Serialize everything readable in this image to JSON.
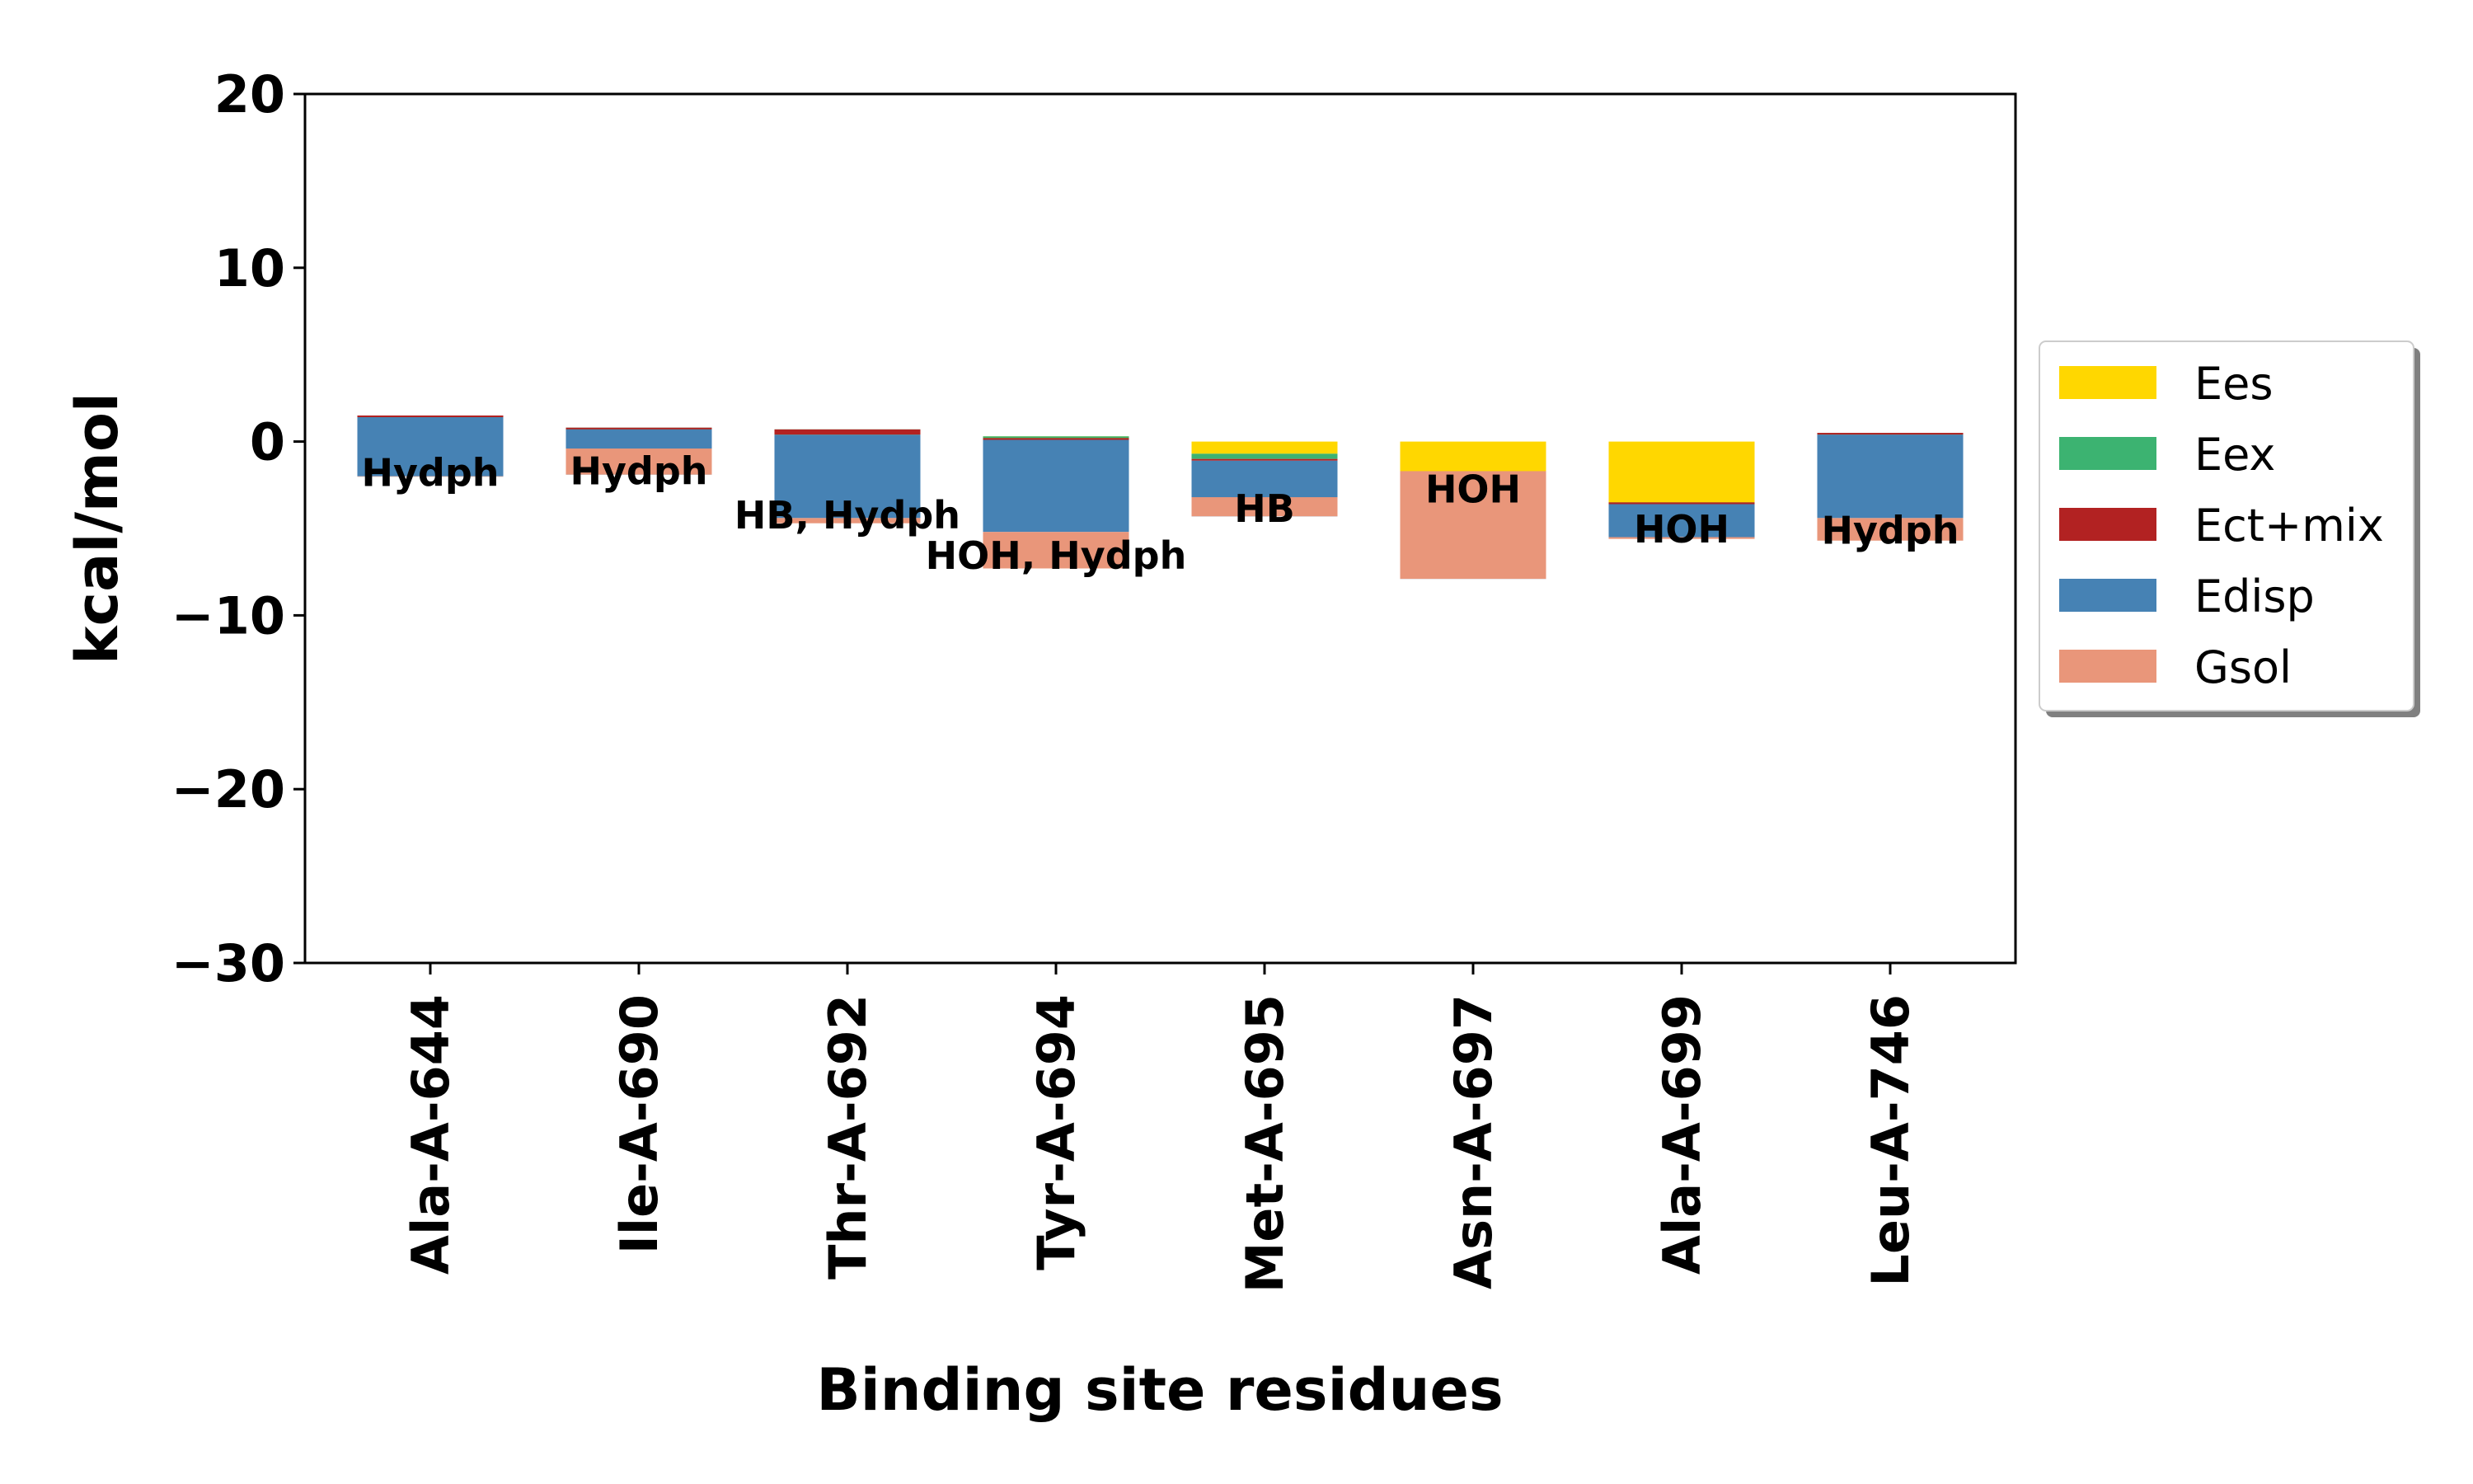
{
  "chart_data": {
    "type": "bar",
    "stacked": true,
    "xlabel": "Binding site residues",
    "ylabel": "kcal/mol",
    "ylim": [
      -30,
      20
    ],
    "yticks": [
      20,
      10,
      0,
      -10,
      -20,
      -30
    ],
    "ytick_labels": [
      "20",
      "10",
      "0",
      "−10",
      "−20",
      "−30"
    ],
    "grid": false,
    "legend_position": "right",
    "categories": [
      "Ala-A-644",
      "Ile-A-690",
      "Thr-A-692",
      "Tyr-A-694",
      "Met-A-695",
      "Asn-A-697",
      "Ala-A-699",
      "Leu-A-746"
    ],
    "annotations": [
      "Hydph",
      "Hydph",
      "HB, Hydph",
      "HOH, Hydph",
      "HB",
      "HOH",
      "HOH",
      "Hydph"
    ],
    "series": [
      {
        "name": "Ees",
        "color": "#FFD700",
        "values": [
          1.1,
          0.5,
          0.5,
          0.3,
          -0.7,
          -5.5,
          -3.6,
          0.4
        ]
      },
      {
        "name": "Eex",
        "color": "#3CB371",
        "values": [
          0.4,
          0.3,
          0.2,
          -0.1,
          -0.3,
          0.1,
          0.1,
          0.1
        ]
      },
      {
        "name": "Ect+mix",
        "color": "#B22222",
        "values": [
          -0.1,
          -0.1,
          -0.3,
          -0.1,
          -0.1,
          -0.1,
          -0.1,
          -0.1
        ]
      },
      {
        "name": "Edisp",
        "color": "#4682B4",
        "values": [
          -3.4,
          -2.6,
          -4.8,
          -5.3,
          -3.2,
          -2.4,
          -1.9,
          -4.8
        ]
      },
      {
        "name": "Gsol",
        "color": "#E9967A",
        "values": [
          0.0,
          1.5,
          -0.3,
          -2.1,
          1.1,
          6.2,
          -0.1,
          -1.3
        ]
      }
    ]
  }
}
